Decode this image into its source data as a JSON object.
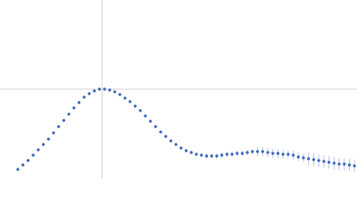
{
  "chart_data": {
    "type": "scatter",
    "x": [
      0.35,
      0.45,
      0.55,
      0.65,
      0.75,
      0.85,
      0.95,
      1.05,
      1.15,
      1.25,
      1.35,
      1.45,
      1.55,
      1.65,
      1.75,
      1.85,
      1.95,
      2.05,
      2.15,
      2.25,
      2.35,
      2.45,
      2.55,
      2.65,
      2.75,
      2.85,
      2.95,
      3.05,
      3.15,
      3.25,
      3.35,
      3.45,
      3.55,
      3.65,
      3.75,
      3.85,
      3.95,
      4.05,
      4.15,
      4.25,
      4.35,
      4.45,
      4.55,
      4.65,
      4.75,
      4.85,
      4.95,
      5.05,
      5.15,
      5.25,
      5.35,
      5.45,
      5.55,
      5.65,
      5.75,
      5.85,
      5.95,
      6.05,
      6.15,
      6.25,
      6.35,
      6.45,
      6.55,
      6.65,
      6.75,
      6.85,
      6.95
    ],
    "series": [
      {
        "color": "#3a64b8",
        "error_color": "#a9bce3",
        "values": [
          0.1,
          0.15,
          0.2,
          0.26,
          0.32,
          0.38,
          0.44,
          0.51,
          0.58,
          0.65,
          0.72,
          0.79,
          0.85,
          0.91,
          0.95,
          0.98,
          1.0,
          1.0,
          0.99,
          0.97,
          0.94,
          0.9,
          0.86,
          0.81,
          0.76,
          0.7,
          0.64,
          0.58,
          0.52,
          0.47,
          0.42,
          0.38,
          0.34,
          0.31,
          0.29,
          0.27,
          0.26,
          0.25,
          0.25,
          0.25,
          0.26,
          0.27,
          0.27,
          0.28,
          0.28,
          0.29,
          0.3,
          0.3,
          0.3,
          0.29,
          0.28,
          0.28,
          0.27,
          0.27,
          0.26,
          0.24,
          0.23,
          0.22,
          0.21,
          0.2,
          0.19,
          0.18,
          0.17,
          0.16,
          0.16,
          0.15,
          0.14
        ],
        "errors": [
          0.01,
          0.01,
          0.01,
          0.01,
          0.01,
          0.01,
          0.01,
          0.01,
          0.01,
          0.01,
          0.01,
          0.01,
          0.01,
          0.01,
          0.01,
          0.01,
          0.01,
          0.01,
          0.01,
          0.01,
          0.01,
          0.01,
          0.01,
          0.01,
          0.01,
          0.01,
          0.01,
          0.01,
          0.01,
          0.01,
          0.01,
          0.01,
          0.02,
          0.02,
          0.02,
          0.02,
          0.02,
          0.03,
          0.03,
          0.03,
          0.03,
          0.03,
          0.03,
          0.03,
          0.03,
          0.03,
          0.03,
          0.05,
          0.05,
          0.05,
          0.05,
          0.05,
          0.05,
          0.05,
          0.05,
          0.05,
          0.05,
          0.07,
          0.07,
          0.07,
          0.07,
          0.07,
          0.07,
          0.07,
          0.07,
          0.07,
          0.07
        ]
      }
    ],
    "xlim": [
      0,
      7
    ],
    "ylim": [
      0,
      2
    ],
    "xticks": [
      2
    ],
    "yticks": [
      1
    ],
    "grid": true
  }
}
